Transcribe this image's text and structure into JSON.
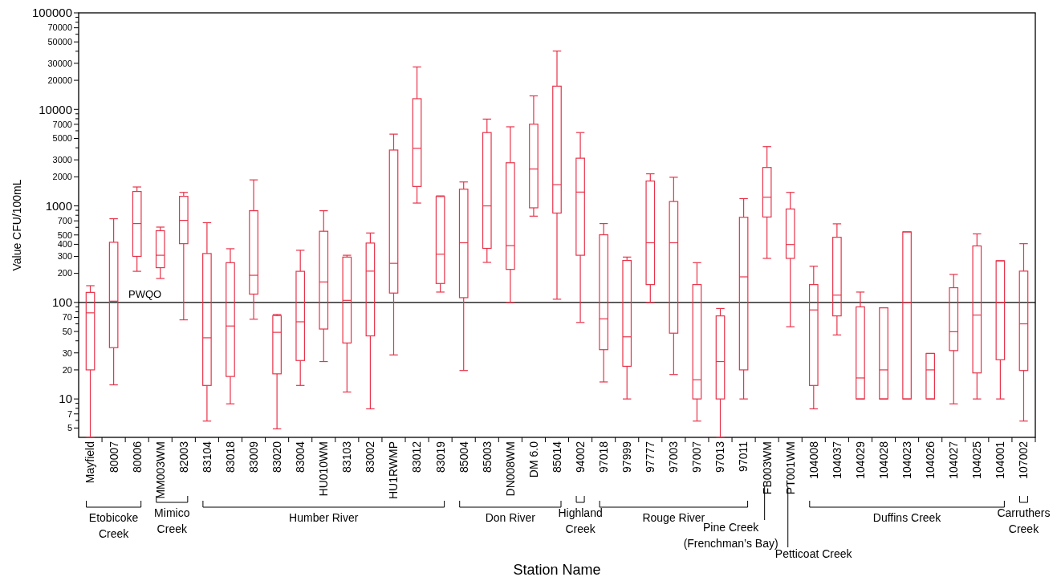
{
  "chart_data": {
    "type": "box",
    "xlabel": "Station Name",
    "ylabel": "Value CFU/100mL",
    "categories": [
      "Mayfield",
      "80007",
      "80006",
      "MM003WM",
      "82003",
      "83104",
      "83018",
      "83009",
      "83020",
      "83004",
      "HU010WM",
      "83103",
      "83002",
      "HU1RWMP",
      "83012",
      "83019",
      "85004",
      "85003",
      "DN008WM",
      "DM 6.0",
      "85014",
      "94002",
      "97018",
      "97999",
      "97777",
      "97003",
      "97007",
      "97013",
      "97011",
      "FB003WM",
      "PT001WM",
      "104008",
      "104037",
      "104029",
      "104028",
      "104023",
      "104026",
      "104027",
      "104025",
      "104001",
      "107002"
    ],
    "series": [
      {
        "color": "#e8334a",
        "boxes": [
          {
            "low": 4,
            "q1": 20,
            "median": 78,
            "q3": 127,
            "high": 149
          },
          {
            "low": 14,
            "q1": 34,
            "median": 103,
            "q3": 420,
            "high": 736
          },
          {
            "low": 210,
            "q1": 300,
            "median": 656,
            "q3": 1410,
            "high": 1570
          },
          {
            "low": 177,
            "q1": 229,
            "median": 308,
            "q3": 553,
            "high": 603
          },
          {
            "low": 66,
            "q1": 406,
            "median": 708,
            "q3": 1256,
            "high": 1380
          },
          {
            "low": 5.9,
            "q1": 13.8,
            "median": 43,
            "q3": 321,
            "high": 670
          },
          {
            "low": 8.9,
            "q1": 17.1,
            "median": 57,
            "q3": 258,
            "high": 360
          },
          {
            "low": 67,
            "q1": 122,
            "median": 191,
            "q3": 891,
            "high": 1860
          },
          {
            "low": 4.9,
            "q1": 18.2,
            "median": 49,
            "q3": 73,
            "high": 75
          },
          {
            "low": 13.8,
            "q1": 25,
            "median": 63,
            "q3": 210,
            "high": 347
          },
          {
            "low": 24.4,
            "q1": 53,
            "median": 163,
            "q3": 546,
            "high": 891
          },
          {
            "low": 11.8,
            "q1": 38,
            "median": 105,
            "q3": 295,
            "high": 308
          },
          {
            "low": 7.9,
            "q1": 45,
            "median": 211,
            "q3": 412,
            "high": 524
          },
          {
            "low": 28.6,
            "q1": 125,
            "median": 254,
            "q3": 3790,
            "high": 5540
          },
          {
            "low": 1070,
            "q1": 1590,
            "median": 3950,
            "q3": 12900,
            "high": 27500
          },
          {
            "low": 128,
            "q1": 157,
            "median": 316,
            "q3": 1250,
            "high": 1270
          },
          {
            "low": 19.7,
            "q1": 112,
            "median": 415,
            "q3": 1490,
            "high": 1770
          },
          {
            "low": 260,
            "q1": 363,
            "median": 1000,
            "q3": 5750,
            "high": 7930
          },
          {
            "low": 100,
            "q1": 220,
            "median": 388,
            "q3": 2800,
            "high": 6600
          },
          {
            "low": 783,
            "q1": 955,
            "median": 2410,
            "q3": 7020,
            "high": 13800
          },
          {
            "low": 108,
            "q1": 843,
            "median": 1660,
            "q3": 17400,
            "high": 40200
          },
          {
            "low": 62,
            "q1": 308,
            "median": 1390,
            "q3": 3120,
            "high": 5750
          },
          {
            "low": 15,
            "q1": 32.4,
            "median": 67.6,
            "q3": 502,
            "high": 656
          },
          {
            "low": 10,
            "q1": 21.8,
            "median": 44,
            "q3": 272,
            "high": 295
          },
          {
            "low": 100,
            "q1": 153,
            "median": 415,
            "q3": 1810,
            "high": 2150
          },
          {
            "low": 17.9,
            "q1": 48,
            "median": 415,
            "q3": 1110,
            "high": 1980
          },
          {
            "low": 5.9,
            "q1": 10,
            "median": 15.8,
            "q3": 153,
            "high": 258
          },
          {
            "low": 4,
            "q1": 10,
            "median": 24.4,
            "q3": 72.5,
            "high": 86.5
          },
          {
            "low": 10,
            "q1": 20,
            "median": 184,
            "q3": 762,
            "high": 1190
          },
          {
            "low": 286,
            "q1": 767,
            "median": 1230,
            "q3": 2500,
            "high": 4110
          },
          {
            "low": 56,
            "q1": 286,
            "median": 398,
            "q3": 929,
            "high": 1380
          },
          {
            "low": 7.9,
            "q1": 13.8,
            "median": 83.6,
            "q3": 153,
            "high": 237
          },
          {
            "low": 46,
            "q1": 72.5,
            "median": 119,
            "q3": 473,
            "high": 652
          },
          {
            "low": 10,
            "q1": 10,
            "median": 16.5,
            "q3": 90,
            "high": 128
          },
          {
            "low": 10,
            "q1": 10,
            "median": 20,
            "q3": 88,
            "high": 88
          },
          {
            "low": 10,
            "q1": 10,
            "median": 100,
            "q3": 538,
            "high": 538
          },
          {
            "low": 10,
            "q1": 10,
            "median": 20,
            "q3": 29.6,
            "high": 29.6
          },
          {
            "low": 8.9,
            "q1": 31.7,
            "median": 49.7,
            "q3": 142,
            "high": 195
          },
          {
            "low": 10,
            "q1": 18.6,
            "median": 74,
            "q3": 385,
            "high": 513
          },
          {
            "low": 10,
            "q1": 25.5,
            "median": 100,
            "q3": 270,
            "high": 270
          },
          {
            "low": 5.9,
            "q1": 19.7,
            "median": 60,
            "q3": 211,
            "high": 406
          }
        ]
      }
    ],
    "log": "y",
    "ylim": [
      4,
      100000
    ],
    "yticks": [
      5,
      {
        "value": 6,
        "label": null
      },
      7,
      {
        "value": 8,
        "label": null
      },
      {
        "value": 9,
        "label": null
      },
      10,
      20,
      30,
      {
        "value": 40,
        "label": null
      },
      50,
      {
        "value": 60,
        "label": null
      },
      70,
      {
        "value": 80,
        "label": null
      },
      {
        "value": 90,
        "label": null
      },
      100,
      200,
      300,
      400,
      500,
      {
        "value": 600,
        "label": null
      },
      700,
      {
        "value": 800,
        "label": null
      },
      {
        "value": 900,
        "label": null
      },
      1000,
      2000,
      3000,
      {
        "value": 4000,
        "label": null
      },
      5000,
      {
        "value": 6000,
        "label": null
      },
      7000,
      {
        "value": 8000,
        "label": null
      },
      {
        "value": 9000,
        "label": null
      },
      10000,
      20000,
      30000,
      {
        "value": 40000,
        "label": null
      },
      50000,
      {
        "value": 60000,
        "label": null
      },
      70000,
      {
        "value": 80000,
        "label": null
      },
      {
        "value": 90000,
        "label": null
      },
      100000
    ],
    "ref_lines": [
      {
        "axis": "y",
        "value": 100,
        "label": "PWQO",
        "color": "#000000"
      }
    ],
    "annotations": [
      "Etobicoke Creek",
      "Mimico Creek",
      "Humber River",
      "Don River",
      "Highland Creek",
      "Rouge River",
      "Pine Creek (Frenchman’s Bay)",
      "Petticoat Creek",
      "Duffins Creek",
      "Carruthers Creek"
    ]
  }
}
